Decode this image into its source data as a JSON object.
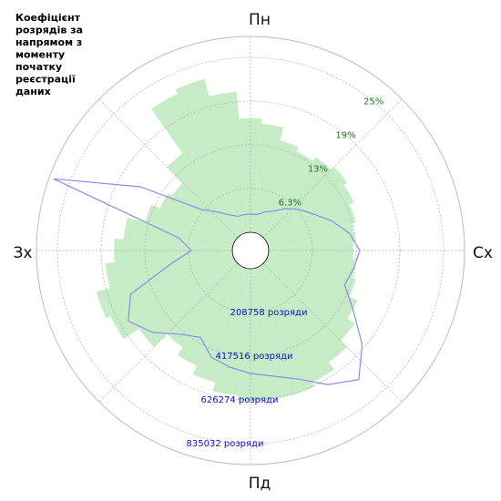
{
  "chart_data": {
    "type": "polar",
    "title": [
      "Коефіцієнт",
      "розрядів за",
      "напрямом з",
      "моменту",
      "початку",
      "реєстрації",
      "даних"
    ],
    "compass_labels": [
      "Пн",
      "Сх",
      "Пд",
      "Зх"
    ],
    "x": [
      0,
      10,
      20,
      30,
      40,
      50,
      60,
      70,
      80,
      90,
      100,
      110,
      120,
      130,
      140,
      150,
      160,
      170,
      180,
      190,
      200,
      210,
      220,
      230,
      240,
      250,
      260,
      270,
      280,
      290,
      300,
      310,
      320,
      330,
      340,
      350
    ],
    "xlim": [
      0,
      360
    ],
    "ylim": [
      0,
      28
    ],
    "yticks": [
      {
        "value": 6.25,
        "label": "6.3%"
      },
      {
        "value": 12.5,
        "label": "13%"
      },
      {
        "value": 18.75,
        "label": "19%"
      },
      {
        "value": 25,
        "label": "25%"
      }
    ],
    "y2lim": [
      0,
      935236
    ],
    "y2ticks": [
      {
        "value": 208758,
        "label": "208758 розряди"
      },
      {
        "value": 417516,
        "label": "417516 розряди"
      },
      {
        "value": 626274,
        "label": "626274 розряди"
      },
      {
        "value": 835032,
        "label": "835032 розряди"
      }
    ],
    "grid": true,
    "series": [
      {
        "type": "bar",
        "color": "#c6ecc6",
        "values": [
          16.3,
          15.6,
          13.7,
          13.0,
          13.7,
          14.3,
          13.7,
          13.0,
          12.4,
          12.1,
          12.4,
          13.0,
          14.3,
          15.6,
          16.9,
          18.2,
          18.9,
          18.9,
          18.9,
          18.2,
          16.9,
          15.6,
          14.3,
          16.9,
          19.5,
          20.2,
          18.2,
          16.9,
          15.6,
          13.0,
          11.7,
          11.1,
          14.3,
          22.1,
          22.8,
          20.2
        ]
      },
      {
        "type": "line",
        "axis": "y2",
        "color": "#8a8af0",
        "values": [
          87000,
          87000,
          108750,
          130500,
          174000,
          217500,
          261000,
          326250,
          391500,
          435000,
          413250,
          391500,
          478500,
          609000,
          717750,
          652500,
          565500,
          522000,
          500250,
          478500,
          456750,
          391500,
          435000,
          522000,
          587250,
          522000,
          304500,
          195750,
          261000,
          913500,
          522000,
          217500,
          152250,
          108750,
          87000,
          87000
        ]
      }
    ]
  }
}
